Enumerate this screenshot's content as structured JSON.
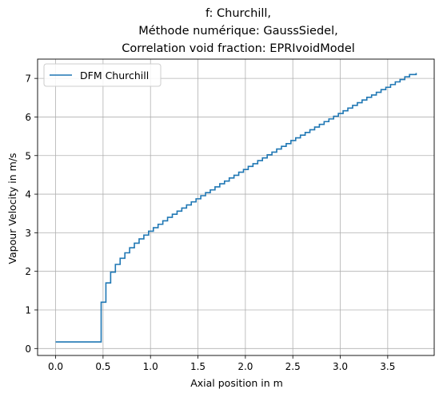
{
  "chart_data": {
    "type": "line",
    "line_style": "step",
    "title_lines": [
      "f: Churchill,",
      "Méthode numérique: GaussSiedel,",
      "Correlation void fraction: EPRIvoidModel"
    ],
    "xlabel": "Axial position in m",
    "ylabel": "Vapour Velocity in m/s",
    "xlim": [
      -0.19,
      3.99
    ],
    "ylim": [
      -0.18,
      7.5
    ],
    "xticks": [
      "0.0",
      "0.5",
      "1.0",
      "1.5",
      "2.0",
      "2.5",
      "3.0",
      "3.5"
    ],
    "yticks": [
      "0",
      "1",
      "2",
      "3",
      "4",
      "5",
      "6",
      "7"
    ],
    "grid": true,
    "legend_position": "top-left",
    "series": [
      {
        "name": "DFM Churchill",
        "color": "#1f77b4",
        "x": [
          0.0,
          0.48,
          0.48,
          0.53,
          0.58,
          0.63,
          0.68,
          0.73,
          0.78,
          0.83,
          0.88,
          0.93,
          0.98,
          1.03,
          1.08,
          1.13,
          1.18,
          1.23,
          1.28,
          1.33,
          1.38,
          1.43,
          1.48,
          1.53,
          1.58,
          1.63,
          1.68,
          1.73,
          1.78,
          1.83,
          1.88,
          1.93,
          1.98,
          2.03,
          2.08,
          2.13,
          2.18,
          2.23,
          2.28,
          2.33,
          2.38,
          2.43,
          2.48,
          2.53,
          2.58,
          2.63,
          2.68,
          2.73,
          2.78,
          2.83,
          2.88,
          2.93,
          2.98,
          3.03,
          3.08,
          3.13,
          3.18,
          3.23,
          3.28,
          3.33,
          3.38,
          3.43,
          3.48,
          3.53,
          3.58,
          3.63,
          3.68,
          3.73,
          3.8
        ],
        "values": [
          0.17,
          0.17,
          1.2,
          1.7,
          1.98,
          2.18,
          2.34,
          2.48,
          2.61,
          2.73,
          2.84,
          2.94,
          3.04,
          3.13,
          3.22,
          3.31,
          3.4,
          3.48,
          3.56,
          3.64,
          3.72,
          3.8,
          3.88,
          3.96,
          4.04,
          4.11,
          4.19,
          4.27,
          4.34,
          4.42,
          4.49,
          4.57,
          4.64,
          4.72,
          4.79,
          4.87,
          4.94,
          5.02,
          5.09,
          5.17,
          5.24,
          5.31,
          5.39,
          5.46,
          5.53,
          5.6,
          5.67,
          5.74,
          5.81,
          5.88,
          5.95,
          6.02,
          6.09,
          6.16,
          6.23,
          6.3,
          6.37,
          6.44,
          6.51,
          6.57,
          6.64,
          6.71,
          6.77,
          6.84,
          6.91,
          6.97,
          7.04,
          7.1,
          7.14
        ]
      }
    ]
  }
}
